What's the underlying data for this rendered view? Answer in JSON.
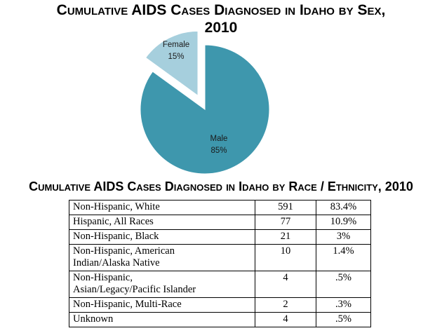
{
  "chart_data": [
    {
      "type": "pie",
      "title_line1": "Cumulative AIDS Cases Diagnosed in Idaho by Sex,",
      "title_line2": "2010",
      "slices": [
        {
          "label": "Male",
          "value": 85,
          "value_label": "85%",
          "color": "#3e97ad"
        },
        {
          "label": "Female",
          "value": 15,
          "value_label": "15%",
          "color": "#a6cfdd",
          "exploded": true
        }
      ]
    },
    {
      "type": "table",
      "title": "Cumulative AIDS Cases Diagnosed in Idaho by Race / Ethnicity, 2010",
      "rows": [
        {
          "label_lines": [
            "Non-Hispanic, White"
          ],
          "count": "591",
          "percent": "83.4%"
        },
        {
          "label_lines": [
            "Hispanic, All Races"
          ],
          "count": "77",
          "percent": "10.9%"
        },
        {
          "label_lines": [
            "Non-Hispanic, Black"
          ],
          "count": "21",
          "percent": "3%"
        },
        {
          "label_lines": [
            "Non-Hispanic, American",
            "Indian/Alaska Native"
          ],
          "count": "10",
          "percent": "1.4%"
        },
        {
          "label_lines": [
            "Non-Hispanic,",
            "Asian/Legacy/Pacific Islander"
          ],
          "count": "4",
          "percent": ".5%"
        },
        {
          "label_lines": [
            "Non-Hispanic, Multi-Race"
          ],
          "count": "2",
          "percent": ".3%"
        },
        {
          "label_lines": [
            "Unknown"
          ],
          "count": "4",
          "percent": ".5%"
        }
      ]
    }
  ]
}
